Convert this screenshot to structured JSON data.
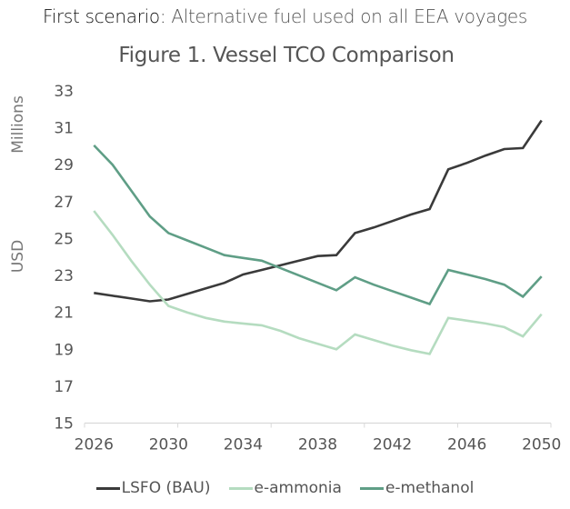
{
  "supertitle": {
    "bold": "First scenario:",
    "rest": " Alternative fuel used on all EEA voyages"
  },
  "chart_data": {
    "type": "line",
    "title": "Figure 1. Vessel TCO Comparison",
    "xlabel": "",
    "ylabel": "USD",
    "ylabel_units": "Millions",
    "ylim": [
      15,
      33
    ],
    "yticks": [
      15,
      17,
      19,
      21,
      23,
      25,
      27,
      29,
      31,
      33
    ],
    "x": [
      2026,
      2027,
      2028,
      2029,
      2030,
      2031,
      2032,
      2033,
      2034,
      2035,
      2036,
      2037,
      2038,
      2039,
      2040,
      2041,
      2042,
      2043,
      2044,
      2045,
      2046,
      2047,
      2048,
      2049,
      2050
    ],
    "xtick_labels": [
      "2026",
      "2030",
      "2034",
      "2038",
      "2042",
      "2046",
      "2050"
    ],
    "grid": false,
    "legend_position": "bottom",
    "series": [
      {
        "name": "LSFO (BAU)",
        "color": "#3a3a3a",
        "values": [
          22.05,
          21.9,
          21.75,
          21.6,
          21.7,
          22.0,
          22.3,
          22.6,
          23.05,
          23.3,
          23.55,
          23.8,
          24.05,
          24.1,
          25.3,
          25.6,
          25.95,
          26.3,
          26.6,
          28.75,
          29.1,
          29.5,
          29.85,
          29.9,
          31.4
        ]
      },
      {
        "name": "e-ammonia",
        "color": "#b5dcc0",
        "values": [
          26.5,
          25.2,
          23.8,
          22.5,
          21.35,
          21.0,
          20.7,
          20.5,
          20.4,
          20.3,
          20.0,
          19.6,
          19.3,
          19.0,
          19.8,
          19.5,
          19.2,
          18.95,
          18.75,
          20.7,
          20.55,
          20.4,
          20.2,
          19.7,
          20.9
        ]
      },
      {
        "name": "e-methanol",
        "color": "#5f9e86",
        "values": [
          30.05,
          29.0,
          27.6,
          26.2,
          25.3,
          24.9,
          24.5,
          24.1,
          23.95,
          23.8,
          23.4,
          23.0,
          22.6,
          22.2,
          22.9,
          22.5,
          22.15,
          21.8,
          21.45,
          23.3,
          23.05,
          22.8,
          22.5,
          21.85,
          22.95
        ]
      }
    ]
  }
}
